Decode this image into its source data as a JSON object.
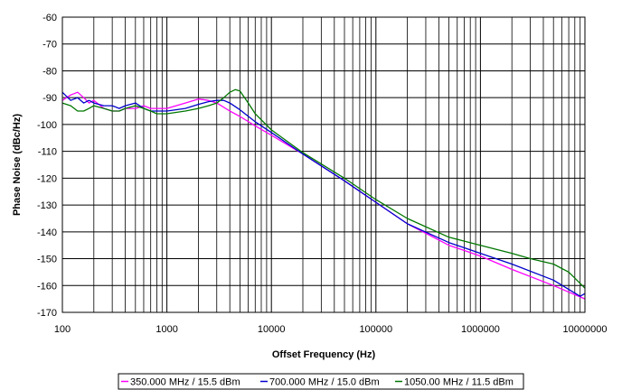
{
  "chart_data": {
    "type": "line",
    "title": "",
    "xlabel": "Offset Frequency (Hz)",
    "ylabel": "Phase Noise (dBc/Hz)",
    "xscale": "log",
    "xlim": [
      100,
      10000000
    ],
    "ylim": [
      -170,
      -60
    ],
    "grid": true,
    "legend_position": "bottom",
    "xticks": [
      "100",
      "1000",
      "10000",
      "100000",
      "1000000",
      "10000000"
    ],
    "yticks": [
      "-60",
      "-70",
      "-80",
      "-90",
      "-100",
      "-110",
      "-120",
      "-130",
      "-140",
      "-150",
      "-160",
      "-170"
    ],
    "series": [
      {
        "name": "350.000 MHz / 15.5 dBm",
        "color": "#ff00ff",
        "x": [
          100,
          120,
          140,
          160,
          180,
          200,
          250,
          300,
          350,
          400,
          500,
          600,
          700,
          800,
          1000,
          1500,
          2000,
          2500,
          3000,
          4000,
          5000,
          7000,
          10000,
          20000,
          50000,
          100000,
          200000,
          500000,
          1000000,
          2000000,
          5000000,
          10000000
        ],
        "y": [
          -91,
          -89,
          -88,
          -90,
          -92,
          -91,
          -94,
          -95,
          -95,
          -94,
          -94,
          -93,
          -94,
          -94,
          -94,
          -92,
          -90.5,
          -91,
          -92,
          -95,
          -97,
          -100.5,
          -104,
          -111,
          -121,
          -129,
          -137,
          -145,
          -149,
          -154,
          -160,
          -165
        ]
      },
      {
        "name": "700.000 MHz / 15.0 dBm",
        "color": "#0000cc",
        "x": [
          100,
          120,
          140,
          160,
          180,
          200,
          250,
          300,
          350,
          400,
          500,
          600,
          700,
          800,
          1000,
          1500,
          2000,
          2500,
          3000,
          3500,
          4000,
          5000,
          7000,
          10000,
          20000,
          50000,
          100000,
          200000,
          500000,
          1000000,
          2000000,
          5000000,
          9000000,
          10000000
        ],
        "y": [
          -88,
          -91,
          -90,
          -92,
          -91,
          -92,
          -93,
          -93,
          -94,
          -93,
          -92,
          -94,
          -95,
          -95,
          -95,
          -94,
          -92.5,
          -91.5,
          -91,
          -91,
          -92,
          -94.5,
          -99,
          -103,
          -111,
          -121,
          -129,
          -137,
          -144,
          -148,
          -152,
          -158,
          -164,
          -163
        ]
      },
      {
        "name": "1050.00 MHz / 11.5 dBm",
        "color": "#007700",
        "x": [
          100,
          120,
          140,
          160,
          180,
          200,
          250,
          300,
          350,
          400,
          500,
          600,
          700,
          800,
          1000,
          1500,
          2000,
          2500,
          3000,
          3500,
          4000,
          4500,
          5000,
          6000,
          7000,
          10000,
          20000,
          50000,
          100000,
          200000,
          500000,
          1000000,
          2000000,
          3000000,
          5000000,
          7000000,
          10000000
        ],
        "y": [
          -92,
          -93,
          -95,
          -95,
          -94,
          -93,
          -94,
          -95,
          -95,
          -94,
          -93,
          -94,
          -95,
          -96,
          -96,
          -95,
          -94,
          -93,
          -92,
          -90,
          -88,
          -87,
          -87.5,
          -92,
          -96,
          -102,
          -110.5,
          -120,
          -128,
          -135,
          -142,
          -145,
          -148,
          -150,
          -152,
          -155,
          -161
        ]
      }
    ]
  }
}
